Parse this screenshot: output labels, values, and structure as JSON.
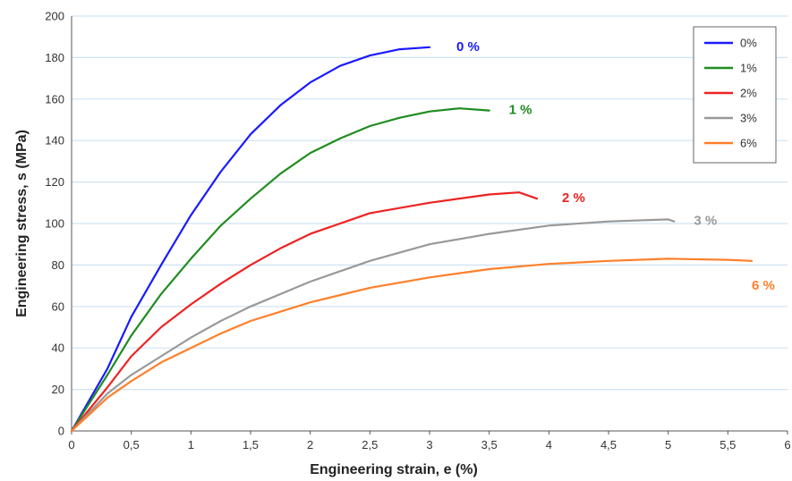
{
  "chart_data": {
    "type": "line",
    "xlabel": "Engineering strain, e (%)",
    "ylabel": "Engineering stress, s (MPa)",
    "xlim": [
      0,
      6
    ],
    "ylim": [
      0,
      200
    ],
    "x_ticks": [
      "0",
      "0,5",
      "1",
      "1,5",
      "2",
      "2,5",
      "3",
      "3,5",
      "4",
      "4,5",
      "5",
      "5,5",
      "6"
    ],
    "y_ticks": [
      "0",
      "20",
      "40",
      "60",
      "80",
      "100",
      "120",
      "140",
      "160",
      "180",
      "200"
    ],
    "grid": "horizontal",
    "legend_position": "top-right",
    "series": [
      {
        "name": "0%",
        "end_label": "0 %",
        "color": "#1a1aff",
        "points": [
          [
            0,
            0
          ],
          [
            0.3,
            30
          ],
          [
            0.5,
            55
          ],
          [
            0.75,
            80
          ],
          [
            1.0,
            104
          ],
          [
            1.25,
            125
          ],
          [
            1.5,
            143
          ],
          [
            1.75,
            157
          ],
          [
            2.0,
            168
          ],
          [
            2.25,
            176
          ],
          [
            2.5,
            181
          ],
          [
            2.75,
            184
          ],
          [
            3.0,
            185
          ]
        ]
      },
      {
        "name": "1%",
        "end_label": "1 %",
        "color": "#1f8c1f",
        "points": [
          [
            0,
            0
          ],
          [
            0.3,
            27
          ],
          [
            0.5,
            46
          ],
          [
            0.75,
            66
          ],
          [
            1.0,
            83
          ],
          [
            1.25,
            99
          ],
          [
            1.5,
            112
          ],
          [
            1.75,
            124
          ],
          [
            2.0,
            134
          ],
          [
            2.25,
            141
          ],
          [
            2.5,
            147
          ],
          [
            2.75,
            151
          ],
          [
            3.0,
            154
          ],
          [
            3.25,
            155.5
          ],
          [
            3.5,
            154.5
          ]
        ]
      },
      {
        "name": "2%",
        "end_label": "2 %",
        "color": "#ee2222",
        "points": [
          [
            0,
            0
          ],
          [
            0.3,
            21
          ],
          [
            0.5,
            36
          ],
          [
            0.75,
            50
          ],
          [
            1.0,
            61
          ],
          [
            1.25,
            71
          ],
          [
            1.5,
            80
          ],
          [
            1.75,
            88
          ],
          [
            2.0,
            95
          ],
          [
            2.25,
            100
          ],
          [
            2.5,
            105
          ],
          [
            3.0,
            110
          ],
          [
            3.5,
            114
          ],
          [
            3.75,
            115
          ],
          [
            3.85,
            113
          ],
          [
            3.9,
            112
          ]
        ]
      },
      {
        "name": "3%",
        "end_label": "3 %",
        "color": "#999999",
        "points": [
          [
            0,
            0
          ],
          [
            0.3,
            18
          ],
          [
            0.5,
            27
          ],
          [
            0.75,
            36
          ],
          [
            1.0,
            45
          ],
          [
            1.25,
            53
          ],
          [
            1.5,
            60
          ],
          [
            2.0,
            72
          ],
          [
            2.5,
            82
          ],
          [
            3.0,
            90
          ],
          [
            3.5,
            95
          ],
          [
            4.0,
            99
          ],
          [
            4.5,
            101
          ],
          [
            5.0,
            102
          ],
          [
            5.05,
            101
          ]
        ]
      },
      {
        "name": "6%",
        "end_label": "6 %",
        "color": "#ff7f2a",
        "points": [
          [
            0,
            0
          ],
          [
            0.3,
            16
          ],
          [
            0.5,
            24
          ],
          [
            0.75,
            33
          ],
          [
            1.0,
            40
          ],
          [
            1.25,
            47
          ],
          [
            1.5,
            53
          ],
          [
            2.0,
            62
          ],
          [
            2.5,
            69
          ],
          [
            3.0,
            74
          ],
          [
            3.5,
            78
          ],
          [
            4.0,
            80.5
          ],
          [
            4.5,
            82
          ],
          [
            5.0,
            83
          ],
          [
            5.5,
            82.5
          ],
          [
            5.7,
            82
          ]
        ]
      }
    ]
  }
}
